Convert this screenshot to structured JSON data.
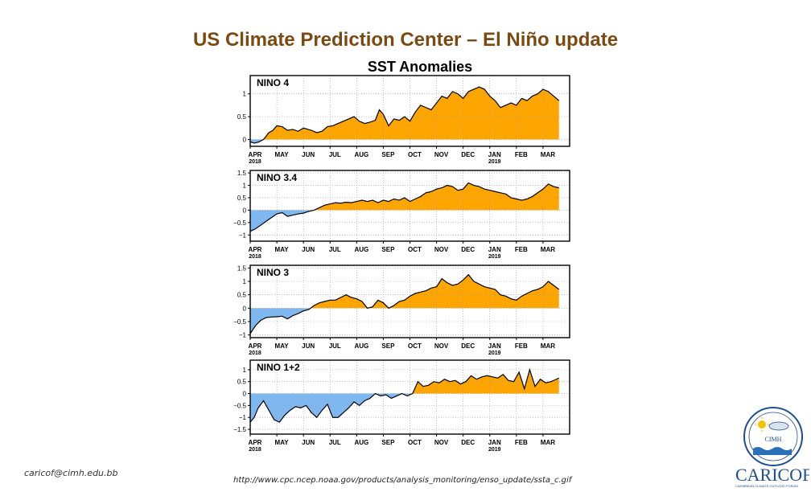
{
  "slide": {
    "title": "US Climate Prediction Center – El Niño update",
    "footer_email": "caricof@cimh.edu.bb",
    "footer_url": "http://www.cpc.ncep.noaa.gov/products/analysis_monitoring/enso_update/ssta_c.gif"
  },
  "logos": {
    "cimh_text": "CIMH",
    "caricof_text": "CARICOF",
    "caricof_subtitle": "CARIBBEAN CLIMATE OUTLOOK FORUM"
  },
  "colors": {
    "positive": "#ffa500",
    "negative": "#7fb8f0",
    "title": "#7b4a12",
    "line": "#000000"
  },
  "chart_data": {
    "type": "area",
    "title": "SST Anomalies",
    "x_months": [
      "APR",
      "MAY",
      "JUN",
      "JUL",
      "AUG",
      "SEP",
      "OCT",
      "NOV",
      "DEC",
      "JAN",
      "FEB",
      "MAR"
    ],
    "x_year_labels": [
      {
        "month": "APR",
        "year": "2018"
      },
      {
        "month": "JAN",
        "year": "2019"
      }
    ],
    "grid": true,
    "panels": [
      {
        "name": "NINO 4",
        "ylim": [
          -0.15,
          1.4
        ],
        "yticks": [
          {
            "v": 0,
            "t": "0"
          },
          {
            "v": 0.5,
            "t": "0.5"
          },
          {
            "v": 1,
            "t": "1"
          }
        ],
        "x": [
          0,
          0.15,
          0.3,
          0.5,
          0.7,
          0.85,
          1.0,
          1.2,
          1.4,
          1.6,
          1.8,
          2.0,
          2.3,
          2.5,
          2.7,
          2.9,
          3.1,
          3.3,
          3.5,
          3.7,
          3.9,
          4.1,
          4.3,
          4.5,
          4.7,
          4.85,
          5.0,
          5.2,
          5.4,
          5.6,
          5.8,
          6.0,
          6.2,
          6.4,
          6.6,
          6.8,
          7.0,
          7.2,
          7.4,
          7.6,
          7.8,
          8.0,
          8.2,
          8.4,
          8.6,
          8.8,
          9.0,
          9.2,
          9.4,
          9.6,
          9.8,
          10.0,
          10.2,
          10.4,
          10.6,
          10.8,
          11.0,
          11.2,
          11.4,
          11.6
        ],
        "values": [
          -0.05,
          -0.08,
          -0.06,
          0.0,
          0.15,
          0.2,
          0.3,
          0.28,
          0.2,
          0.22,
          0.18,
          0.25,
          0.2,
          0.15,
          0.18,
          0.28,
          0.3,
          0.35,
          0.4,
          0.45,
          0.5,
          0.4,
          0.35,
          0.38,
          0.42,
          0.65,
          0.55,
          0.3,
          0.45,
          0.42,
          0.5,
          0.4,
          0.6,
          0.75,
          0.7,
          0.65,
          0.8,
          0.95,
          0.9,
          1.05,
          1.0,
          0.9,
          1.05,
          1.1,
          1.15,
          1.1,
          0.95,
          0.85,
          0.7,
          0.75,
          0.8,
          0.75,
          0.9,
          0.85,
          0.95,
          1.0,
          1.1,
          1.05,
          0.95,
          0.85
        ]
      },
      {
        "name": "NINO 3.4",
        "ylim": [
          -1.25,
          1.6
        ],
        "yticks": [
          {
            "v": -1,
            "t": "−1"
          },
          {
            "v": -0.5,
            "t": "−0.5"
          },
          {
            "v": 0,
            "t": "0"
          },
          {
            "v": 0.5,
            "t": "0.5"
          },
          {
            "v": 1,
            "t": "1"
          },
          {
            "v": 1.5,
            "t": "1.5"
          }
        ],
        "x": [
          0,
          0.2,
          0.4,
          0.6,
          0.8,
          1.0,
          1.2,
          1.4,
          1.6,
          1.8,
          2.0,
          2.2,
          2.4,
          2.6,
          2.8,
          3.0,
          3.2,
          3.4,
          3.6,
          3.8,
          4.0,
          4.2,
          4.4,
          4.6,
          4.8,
          5.0,
          5.2,
          5.4,
          5.6,
          5.8,
          6.0,
          6.2,
          6.4,
          6.6,
          6.8,
          7.0,
          7.2,
          7.4,
          7.6,
          7.8,
          8.0,
          8.2,
          8.4,
          8.6,
          8.8,
          9.0,
          9.2,
          9.4,
          9.6,
          9.8,
          10.0,
          10.2,
          10.4,
          10.6,
          10.8,
          11.0,
          11.2,
          11.4,
          11.6
        ],
        "values": [
          -0.85,
          -0.75,
          -0.6,
          -0.45,
          -0.3,
          -0.15,
          -0.1,
          -0.25,
          -0.2,
          -0.15,
          -0.12,
          -0.05,
          0.0,
          0.1,
          0.2,
          0.25,
          0.3,
          0.28,
          0.32,
          0.3,
          0.35,
          0.4,
          0.35,
          0.4,
          0.3,
          0.4,
          0.35,
          0.45,
          0.4,
          0.5,
          0.35,
          0.45,
          0.55,
          0.7,
          0.75,
          0.85,
          0.9,
          1.0,
          0.95,
          0.8,
          0.85,
          1.1,
          1.0,
          0.95,
          0.85,
          0.8,
          0.75,
          0.7,
          0.65,
          0.5,
          0.45,
          0.4,
          0.45,
          0.55,
          0.7,
          0.85,
          1.05,
          0.95,
          0.9
        ]
      },
      {
        "name": "NINO 3",
        "ylim": [
          -1.1,
          1.6
        ],
        "yticks": [
          {
            "v": -1,
            "t": "−1"
          },
          {
            "v": -0.5,
            "t": "−0.5"
          },
          {
            "v": 0,
            "t": "0"
          },
          {
            "v": 0.5,
            "t": "0.5"
          },
          {
            "v": 1,
            "t": "1"
          },
          {
            "v": 1.5,
            "t": "1.5"
          }
        ],
        "x": [
          0,
          0.2,
          0.4,
          0.6,
          0.8,
          1.0,
          1.2,
          1.4,
          1.6,
          1.8,
          2.0,
          2.2,
          2.4,
          2.6,
          2.8,
          3.0,
          3.2,
          3.4,
          3.6,
          3.8,
          4.0,
          4.2,
          4.4,
          4.6,
          4.8,
          5.0,
          5.2,
          5.4,
          5.6,
          5.8,
          6.0,
          6.2,
          6.4,
          6.6,
          6.8,
          7.0,
          7.2,
          7.4,
          7.6,
          7.8,
          8.0,
          8.2,
          8.4,
          8.6,
          8.8,
          9.0,
          9.2,
          9.4,
          9.6,
          9.8,
          10.0,
          10.2,
          10.4,
          10.6,
          10.8,
          11.0,
          11.2,
          11.4,
          11.6
        ],
        "values": [
          -0.95,
          -0.65,
          -0.45,
          -0.35,
          -0.33,
          -0.32,
          -0.3,
          -0.4,
          -0.28,
          -0.2,
          -0.1,
          -0.05,
          0.1,
          0.2,
          0.25,
          0.3,
          0.3,
          0.4,
          0.5,
          0.4,
          0.35,
          0.25,
          0.0,
          0.05,
          0.3,
          0.2,
          0.0,
          0.1,
          0.25,
          0.3,
          0.45,
          0.55,
          0.6,
          0.65,
          0.75,
          0.8,
          1.1,
          0.95,
          0.85,
          0.9,
          1.05,
          1.25,
          1.0,
          0.9,
          0.8,
          0.75,
          0.7,
          0.5,
          0.45,
          0.35,
          0.3,
          0.45,
          0.55,
          0.65,
          0.7,
          0.8,
          1.0,
          0.85,
          0.7
        ]
      },
      {
        "name": "NINO 1+2",
        "ylim": [
          -1.7,
          1.4
        ],
        "yticks": [
          {
            "v": -1.5,
            "t": "−1.5"
          },
          {
            "v": -1,
            "t": "−1"
          },
          {
            "v": -0.5,
            "t": "−0.5"
          },
          {
            "v": 0,
            "t": "0"
          },
          {
            "v": 0.5,
            "t": "0.5"
          },
          {
            "v": 1,
            "t": "1"
          }
        ],
        "x": [
          0,
          0.15,
          0.3,
          0.5,
          0.7,
          0.9,
          1.1,
          1.3,
          1.5,
          1.7,
          1.9,
          2.1,
          2.3,
          2.5,
          2.7,
          2.9,
          3.1,
          3.3,
          3.5,
          3.7,
          3.9,
          4.1,
          4.3,
          4.5,
          4.7,
          4.9,
          5.1,
          5.3,
          5.5,
          5.7,
          5.9,
          6.1,
          6.3,
          6.5,
          6.7,
          6.9,
          7.1,
          7.3,
          7.5,
          7.7,
          7.9,
          8.1,
          8.3,
          8.5,
          8.7,
          8.9,
          9.1,
          9.3,
          9.5,
          9.7,
          9.9,
          10.1,
          10.3,
          10.5,
          10.7,
          10.9,
          11.1,
          11.3,
          11.5,
          11.6
        ],
        "values": [
          -1.2,
          -1.0,
          -0.6,
          -0.3,
          -0.7,
          -1.1,
          -1.2,
          -0.9,
          -0.7,
          -0.55,
          -0.6,
          -0.5,
          -0.8,
          -1.0,
          -0.7,
          -0.45,
          -1.0,
          -1.0,
          -0.8,
          -0.6,
          -0.35,
          -0.5,
          -0.3,
          -0.2,
          0.0,
          -0.1,
          -0.05,
          -0.2,
          -0.1,
          0.0,
          -0.1,
          0.0,
          0.5,
          0.3,
          0.35,
          0.5,
          0.45,
          0.6,
          0.5,
          0.55,
          0.4,
          0.5,
          0.75,
          0.6,
          0.7,
          0.75,
          0.7,
          0.65,
          0.8,
          0.55,
          0.5,
          0.9,
          0.2,
          1.0,
          0.3,
          0.6,
          0.45,
          0.5,
          0.6,
          0.65
        ]
      }
    ]
  }
}
